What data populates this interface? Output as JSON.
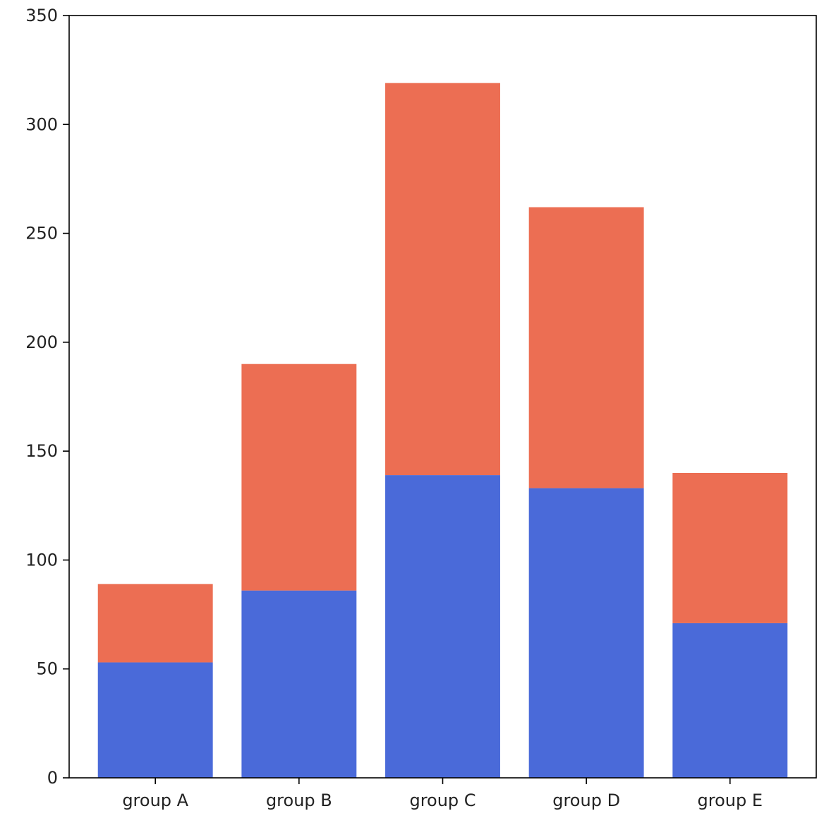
{
  "chart_data": {
    "type": "bar",
    "stacked": true,
    "categories": [
      "group A",
      "group B",
      "group C",
      "group D",
      "group E"
    ],
    "series": [
      {
        "values": [
          53,
          86,
          139,
          133,
          71
        ],
        "color": "#4a6ad9"
      },
      {
        "values": [
          36,
          104,
          180,
          129,
          69
        ],
        "color": "#ec6e53"
      }
    ],
    "title": "",
    "xlabel": "",
    "ylabel": "",
    "ylim": [
      0,
      350
    ],
    "yticks": [
      0,
      50,
      100,
      150,
      200,
      250,
      300,
      350
    ],
    "grid": false,
    "legend": "none"
  }
}
